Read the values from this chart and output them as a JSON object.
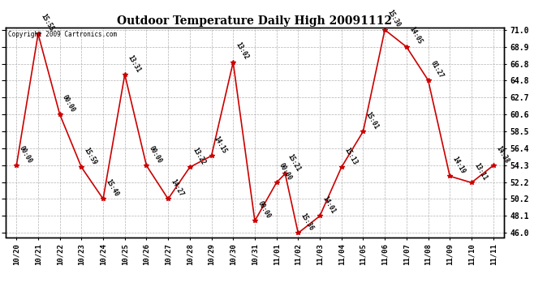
{
  "title": "Outdoor Temperature Daily High 20091112",
  "copyright": "Copyright 2009 Cartronics.com",
  "y_min": 46.0,
  "y_max": 71.0,
  "y_ticks": [
    46.0,
    48.1,
    50.2,
    52.2,
    54.3,
    56.4,
    58.5,
    60.6,
    62.7,
    64.8,
    66.8,
    68.9,
    71.0
  ],
  "line_color": "#cc0000",
  "marker_color": "#cc0000",
  "background_color": "#ffffff",
  "grid_color": "#aaaaaa",
  "points": [
    {
      "xi": 0,
      "time": "00:00",
      "value": 54.3
    },
    {
      "xi": 1,
      "time": "15:55",
      "value": 70.5
    },
    {
      "xi": 2,
      "time": "00:00",
      "value": 60.6
    },
    {
      "xi": 3,
      "time": "15:59",
      "value": 54.1
    },
    {
      "xi": 4,
      "time": "15:40",
      "value": 50.2
    },
    {
      "xi": 5,
      "time": "13:31",
      "value": 65.5
    },
    {
      "xi": 6,
      "time": "00:00",
      "value": 54.3
    },
    {
      "xi": 7,
      "time": "14:27",
      "value": 50.2
    },
    {
      "xi": 8,
      "time": "13:22",
      "value": 54.1
    },
    {
      "xi": 9,
      "time": "14:15",
      "value": 55.5
    },
    {
      "xi": 10,
      "time": "13:02",
      "value": 67.0
    },
    {
      "xi": 11,
      "time": "00:00",
      "value": 47.5
    },
    {
      "xi": 12,
      "time": "00:00",
      "value": 52.2
    },
    {
      "xi": 12.4,
      "time": "15:21",
      "value": 53.3
    },
    {
      "xi": 13,
      "time": "15:36",
      "value": 46.0
    },
    {
      "xi": 14,
      "time": "14:01",
      "value": 48.1
    },
    {
      "xi": 15,
      "time": "15:13",
      "value": 54.1
    },
    {
      "xi": 16,
      "time": "15:01",
      "value": 58.5
    },
    {
      "xi": 17,
      "time": "15:30",
      "value": 71.0
    },
    {
      "xi": 18,
      "time": "14:05",
      "value": 68.9
    },
    {
      "xi": 19,
      "time": "01:27",
      "value": 64.8
    },
    {
      "xi": 20,
      "time": "14:19",
      "value": 53.0
    },
    {
      "xi": 21,
      "time": "13:11",
      "value": 52.2
    },
    {
      "xi": 22,
      "time": "14:38",
      "value": 54.3
    }
  ],
  "x_labels": [
    "10/20",
    "10/21",
    "10/22",
    "10/23",
    "10/24",
    "10/25",
    "10/26",
    "10/27",
    "10/28",
    "10/29",
    "10/30",
    "10/31",
    "11/01",
    "11/02",
    "11/03",
    "11/04",
    "11/05",
    "11/06",
    "11/07",
    "11/08",
    "11/09",
    "11/10",
    "11/11"
  ],
  "x_ticks": [
    0,
    1,
    2,
    3,
    4,
    5,
    6,
    7,
    8,
    9,
    10,
    11,
    12,
    13,
    14,
    15,
    16,
    17,
    18,
    19,
    20,
    21,
    22
  ]
}
